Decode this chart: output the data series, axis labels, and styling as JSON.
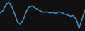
{
  "y": [
    0.2,
    0.6,
    1.8,
    2.2,
    1.5,
    0.0,
    -1.6,
    -2.0,
    -1.0,
    0.5,
    1.4,
    1.6,
    1.2,
    0.8,
    0.5,
    0.3,
    0.4,
    0.2,
    0.3,
    0.1,
    0.4,
    0.3,
    0.0,
    -0.2,
    -0.4,
    -0.3,
    -1.0,
    -2.8,
    -1.0,
    0.8
  ],
  "line_color": "#4a90c4",
  "linewidth": 1.1,
  "background_color": "#111111"
}
